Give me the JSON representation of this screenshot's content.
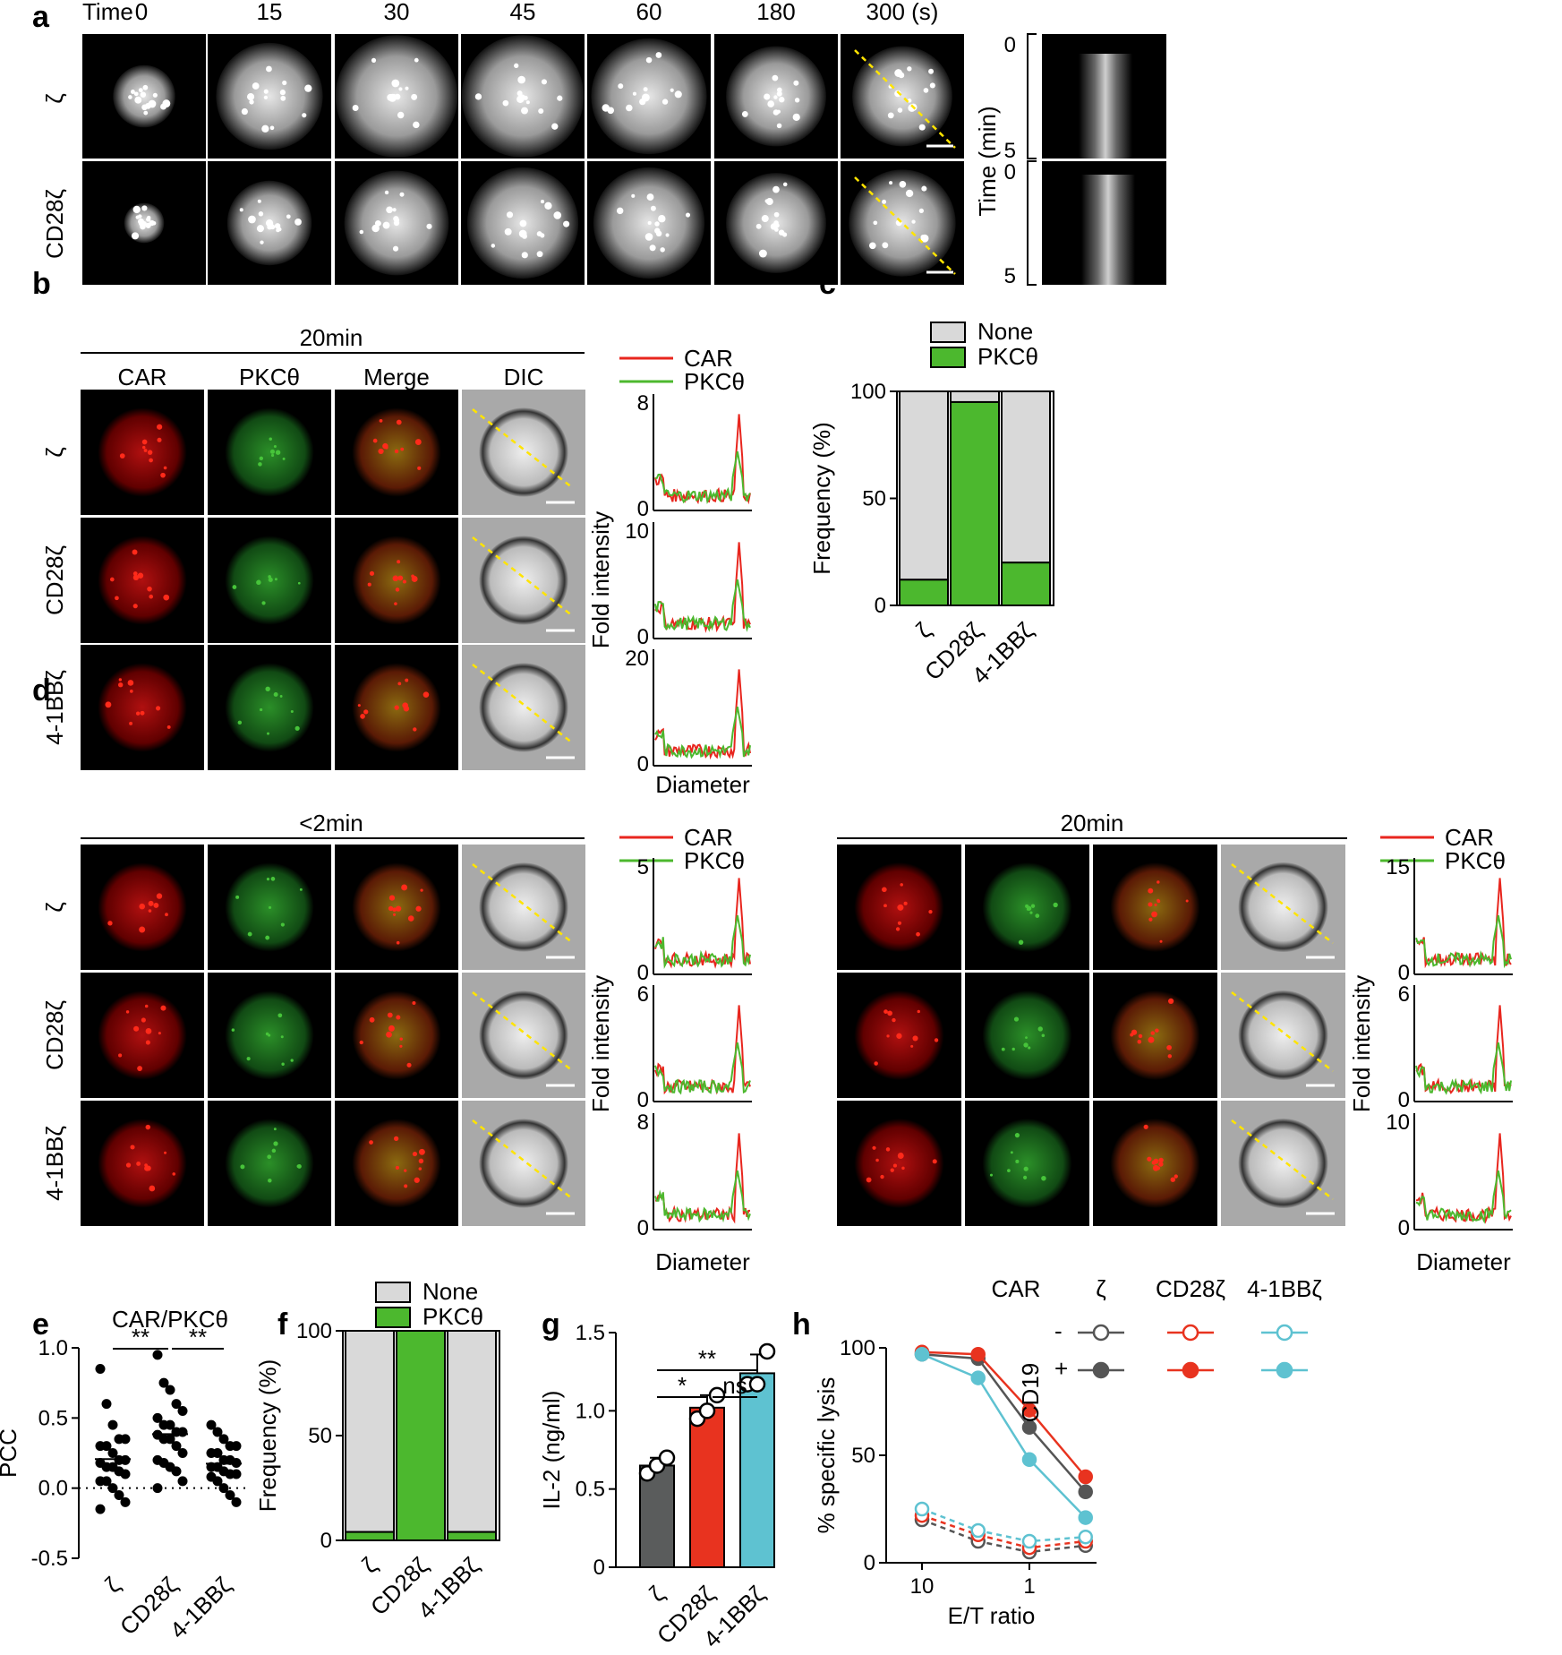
{
  "panels": {
    "a": "a",
    "b": "b",
    "c": "c",
    "d": "d",
    "e": "e",
    "f": "f",
    "g": "g",
    "h": "h"
  },
  "panel_a": {
    "time_label": "Time",
    "times": [
      "0",
      "15",
      "30",
      "45",
      "60",
      "180",
      "300 (s)"
    ],
    "rows": [
      "ζ",
      "CD28ζ"
    ],
    "kymo_axis_label": "Time (min)",
    "kymo_ticks": [
      "0",
      "5"
    ]
  },
  "panel_b": {
    "header": "20min",
    "columns": [
      "CAR",
      "PKCθ",
      "Merge",
      "DIC"
    ],
    "rows": [
      "ζ",
      "CD28ζ",
      "4-1BBζ"
    ],
    "legend": [
      "CAR",
      "PKCθ"
    ],
    "ylabel": "Fold intensity",
    "xlabel": "Diameter",
    "row_ymax": [
      "8",
      "10",
      "20"
    ],
    "row_ymin": "0"
  },
  "panel_d": {
    "left_header": "<2min",
    "right_header": "20min",
    "columns": [
      "CAR",
      "PKCθ",
      "Merge",
      "DIC"
    ],
    "rows": [
      "ζ",
      "CD28ζ",
      "4-1BBζ"
    ],
    "legend": [
      "CAR",
      "PKCθ"
    ],
    "ylabel": "Fold intensity",
    "xlabel": "Diameter",
    "left_ymax": [
      "5",
      "6",
      "8"
    ],
    "right_ymax": [
      "15",
      "6",
      "10"
    ],
    "row_ymin": "0"
  },
  "colors": {
    "car": "#e8261e",
    "pkc": "#4cb82e",
    "none": "#d9d9d9",
    "gray": "#5a5c5c",
    "red": "#e8331f",
    "cyan": "#5ec2d1",
    "dark": "#555555"
  },
  "chart_data": [
    {
      "panel": "c",
      "type": "bar",
      "stacked": true,
      "categories": [
        "ζ",
        "CD28ζ",
        "4-1BBζ"
      ],
      "series": [
        {
          "name": "PKCθ",
          "values": [
            12,
            95,
            20
          ]
        },
        {
          "name": "None",
          "values": [
            88,
            5,
            80
          ]
        }
      ],
      "ylabel": "Frequency (%)",
      "ylim": [
        0,
        100
      ],
      "yticks": [
        "0",
        "50",
        "100"
      ]
    },
    {
      "panel": "e",
      "type": "scatter",
      "title": "CAR/PKCθ",
      "categories": [
        "ζ",
        "CD28ζ",
        "4-1BBζ"
      ],
      "ylabel": "PCC",
      "ylim": [
        -0.5,
        1.0
      ],
      "yticks": [
        "-0.5",
        "0.0",
        "0.5",
        "1.0"
      ],
      "significance": [
        "**",
        "**"
      ],
      "values": [
        [
          0.85,
          0.6,
          0.45,
          0.35,
          0.35,
          0.3,
          0.3,
          0.25,
          0.2,
          0.2,
          0.18,
          0.15,
          0.15,
          0.12,
          0.1,
          0.05,
          0.05,
          0.0,
          -0.05,
          -0.1,
          -0.15
        ],
        [
          0.95,
          0.75,
          0.7,
          0.6,
          0.55,
          0.5,
          0.45,
          0.45,
          0.4,
          0.4,
          0.38,
          0.35,
          0.35,
          0.3,
          0.25,
          0.2,
          0.18,
          0.15,
          0.12,
          0.05,
          0.0
        ],
        [
          0.45,
          0.4,
          0.35,
          0.3,
          0.3,
          0.25,
          0.25,
          0.2,
          0.2,
          0.18,
          0.15,
          0.15,
          0.12,
          0.1,
          0.1,
          0.08,
          0.05,
          0.0,
          -0.05,
          -0.1
        ]
      ]
    },
    {
      "panel": "f",
      "type": "bar",
      "stacked": true,
      "categories": [
        "ζ",
        "CD28ζ",
        "4-1BBζ"
      ],
      "series": [
        {
          "name": "PKCθ",
          "values": [
            4,
            100,
            4
          ]
        },
        {
          "name": "None",
          "values": [
            96,
            0,
            96
          ]
        }
      ],
      "ylabel": "Frequency (%)",
      "ylim": [
        0,
        100
      ],
      "yticks": [
        "0",
        "50",
        "100"
      ]
    },
    {
      "panel": "g",
      "type": "bar",
      "categories": [
        "ζ",
        "CD28ζ",
        "4-1BBζ"
      ],
      "values": [
        0.65,
        1.02,
        1.24
      ],
      "errors": [
        0.05,
        0.08,
        0.12
      ],
      "points": [
        [
          0.6,
          0.65,
          0.7
        ],
        [
          0.95,
          1.0,
          1.1
        ],
        [
          1.17,
          1.17,
          1.38
        ]
      ],
      "ylabel": "IL-2 (ng/ml)",
      "ylim": [
        0,
        1.5
      ],
      "yticks": [
        "0",
        "0.5",
        "1.0",
        "1.5"
      ],
      "significance": [
        {
          "pair": "ζ–CD28ζ",
          "label": "*"
        },
        {
          "pair": "CD28ζ–4-1BBζ",
          "label": "ns"
        },
        {
          "pair": "ζ–4-1BBζ",
          "label": "**"
        }
      ]
    },
    {
      "panel": "h",
      "type": "line",
      "x": [
        10,
        3,
        1,
        0.3
      ],
      "xscale": "log-reversed",
      "xtick_labels": [
        "10",
        "1"
      ],
      "xlabel": "E/T ratio",
      "ylabel": "% specific lysis",
      "ylim": [
        0,
        100
      ],
      "yticks": [
        "0",
        "50",
        "100"
      ],
      "legend": {
        "title": "CAR",
        "cd19_label": "CD19",
        "cols": [
          "ζ",
          "CD28ζ",
          "4-1BBζ"
        ],
        "rows": [
          "-",
          "+"
        ]
      },
      "series": [
        {
          "name": "ζ +",
          "values": [
            97,
            95,
            63,
            33
          ]
        },
        {
          "name": "CD28ζ +",
          "values": [
            98,
            97,
            71,
            40
          ]
        },
        {
          "name": "4-1BBζ +",
          "values": [
            97,
            86,
            48,
            21
          ]
        },
        {
          "name": "ζ -",
          "values": [
            20,
            10,
            5,
            8
          ]
        },
        {
          "name": "CD28ζ -",
          "values": [
            22,
            13,
            7,
            10
          ]
        },
        {
          "name": "4-1BBζ -",
          "values": [
            25,
            15,
            10,
            12
          ]
        }
      ]
    }
  ]
}
